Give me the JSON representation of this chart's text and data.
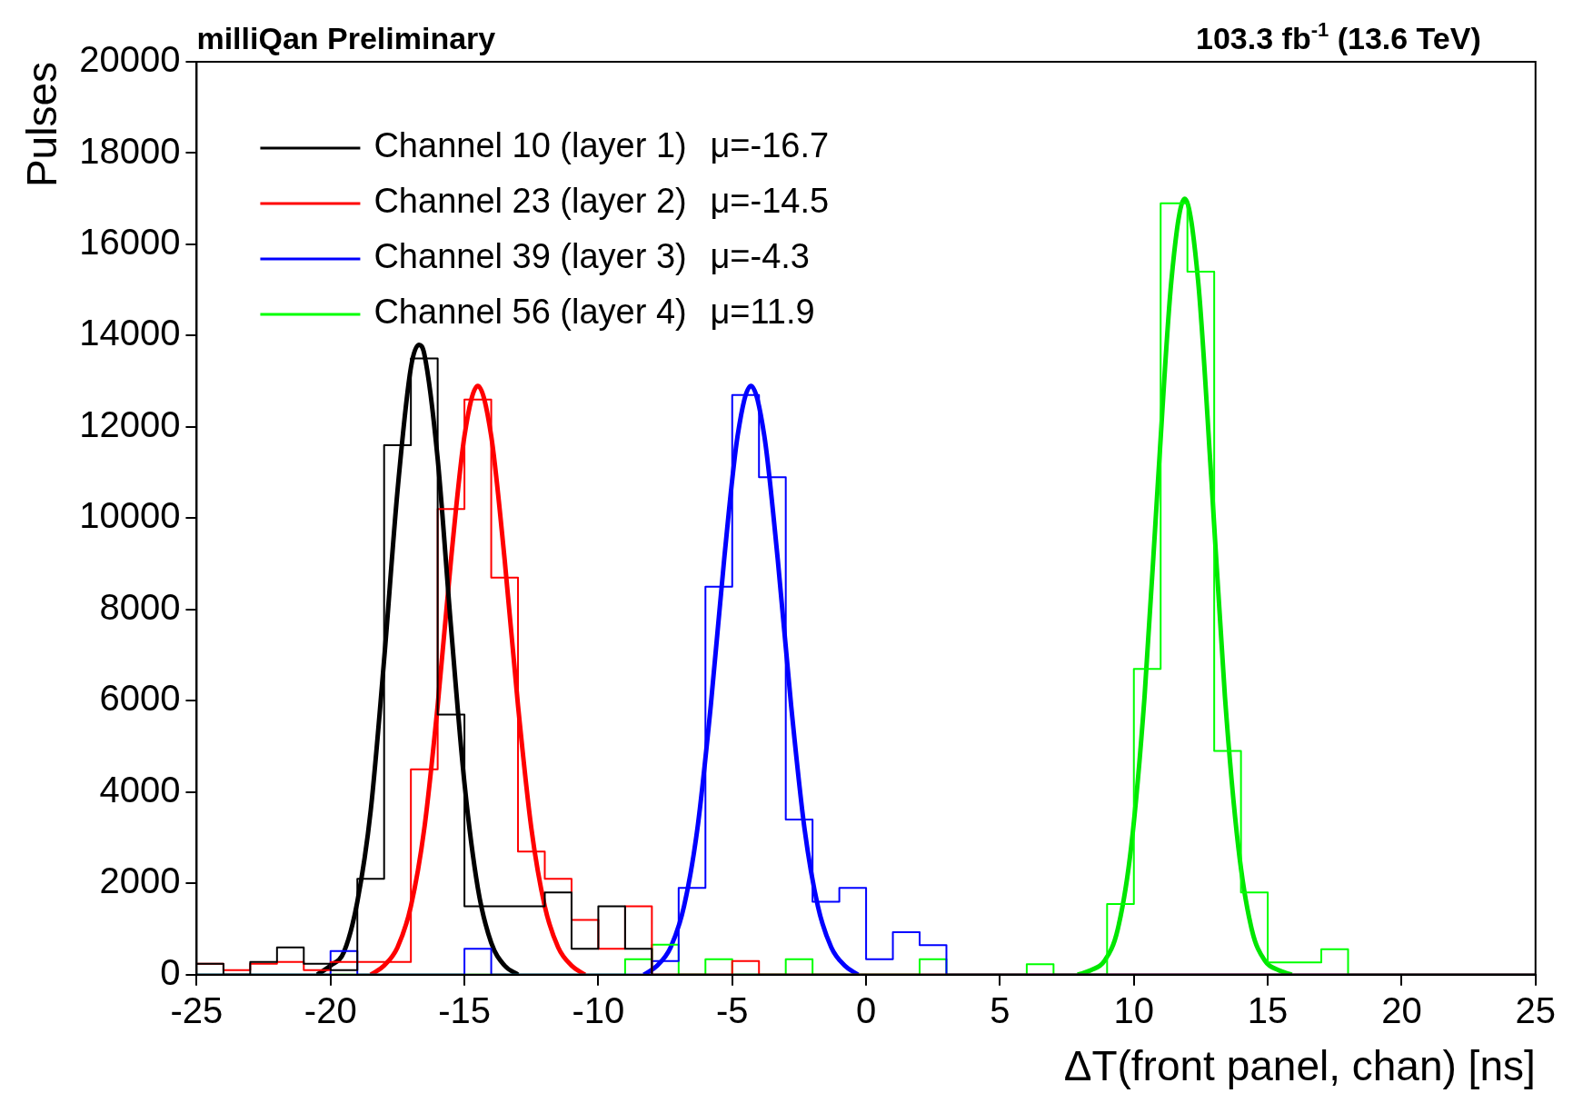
{
  "chart_data": {
    "type": "histogram",
    "title": "milliQan Preliminary",
    "subtitle": "103.3 fb$^{-1}$ (13.6 TeV)",
    "xlabel": "ΔT(front panel, chan) [ns]",
    "ylabel": "Pulses",
    "legend": "top left",
    "xlim": [
      -25,
      25
    ],
    "xticks": [
      -25,
      -20,
      -15,
      -10,
      -5,
      0,
      5,
      10,
      15,
      20,
      25
    ],
    "ylim": [
      0,
      20000
    ],
    "yticks": [
      0,
      2000,
      4000,
      6000,
      8000,
      10000,
      12000,
      14000,
      16000,
      18000,
      20000
    ],
    "bins": [
      -25,
      -24,
      -23,
      -22,
      -21,
      -20,
      -19,
      -18,
      -17,
      -16,
      -15,
      -14,
      -13,
      -12,
      -11,
      -10,
      -9,
      -8,
      -7,
      -6,
      -5,
      -4,
      -3,
      -2,
      -1,
      0,
      1,
      2,
      3,
      4,
      5,
      6,
      7,
      8,
      9,
      10,
      11,
      12,
      13,
      14,
      15,
      16,
      17,
      18,
      19,
      20,
      21,
      22,
      23,
      24,
      25
    ],
    "series": [
      {
        "name": "Channel 10 (layer 1)   μ=-16.7",
        "color": "#000000",
        "values": [
          240,
          0,
          280,
          600,
          240,
          100,
          2100,
          11600,
          13500,
          5700,
          1500,
          1500,
          1500,
          1800,
          570,
          1500,
          570,
          0,
          0,
          0,
          0,
          0,
          0,
          0,
          0,
          0,
          0,
          0,
          0,
          0,
          0,
          0,
          0,
          0,
          0,
          0,
          0,
          0,
          0,
          0,
          0,
          0,
          0,
          0,
          0,
          0,
          0,
          0,
          0,
          0
        ]
      },
      {
        "name": "Channel 23 (layer 2)   μ=-14.5",
        "color": "#ff0000",
        "values": [
          240,
          100,
          240,
          280,
          100,
          280,
          280,
          280,
          4500,
          10200,
          12600,
          8700,
          2700,
          2100,
          1200,
          570,
          1500,
          0,
          0,
          0,
          300,
          0,
          0,
          0,
          0,
          0,
          0,
          0,
          0,
          0,
          0,
          0,
          0,
          0,
          0,
          0,
          0,
          0,
          0,
          0,
          0,
          0,
          0,
          0,
          0,
          0,
          0,
          0,
          0,
          0
        ]
      },
      {
        "name": "Channel 39 (layer 3)   μ=-4.3",
        "color": "#0000ff",
        "values": [
          0,
          0,
          0,
          0,
          0,
          520,
          0,
          0,
          0,
          0,
          570,
          0,
          0,
          0,
          0,
          0,
          0,
          300,
          1900,
          8500,
          12700,
          10900,
          3400,
          1600,
          1900,
          340,
          930,
          650,
          0,
          0,
          0,
          0,
          0,
          0,
          0,
          0,
          0,
          0,
          0,
          0,
          0,
          0,
          0,
          0,
          0,
          0,
          0,
          0,
          0,
          0
        ]
      },
      {
        "name": "Channel 56 (layer 4)   μ=11.9",
        "color": "#00ff00",
        "values": [
          0,
          0,
          0,
          0,
          0,
          0,
          0,
          0,
          0,
          0,
          0,
          0,
          0,
          0,
          0,
          0,
          340,
          660,
          0,
          340,
          0,
          0,
          340,
          0,
          0,
          0,
          0,
          340,
          0,
          0,
          0,
          230,
          0,
          0,
          1550,
          6700,
          16900,
          15400,
          4900,
          1800,
          270,
          270,
          560,
          0,
          0,
          0,
          0,
          0,
          0,
          0
        ]
      },
      {
        "color": "#000000",
        "type": "line",
        "x": [
          -20.5,
          -20,
          -19.5,
          -19,
          -18.5,
          -18,
          -17.5,
          -17,
          -16.7,
          -16.5,
          -16,
          -15.5,
          -15,
          -14.5,
          -14,
          -13.5,
          -13
        ],
        "values": [
          0,
          200,
          500,
          1600,
          3600,
          6900,
          10600,
          13300,
          13800,
          13600,
          11300,
          7600,
          4200,
          1900,
          700,
          200,
          0
        ]
      },
      {
        "color": "#ff0000",
        "type": "line",
        "x": [
          -18.5,
          -18,
          -17.5,
          -17,
          -16.5,
          -16,
          -15.5,
          -15,
          -14.5,
          -14,
          -13.5,
          -13,
          -12.5,
          -12,
          -11.5,
          -11,
          -10.5
        ],
        "values": [
          0,
          200,
          600,
          1500,
          3200,
          5900,
          9100,
          11800,
          12900,
          11800,
          9100,
          5900,
          3200,
          1500,
          600,
          200,
          0
        ]
      },
      {
        "color": "#0000ff",
        "type": "line",
        "x": [
          -8.3,
          -7.8,
          -7.3,
          -6.8,
          -6.3,
          -5.8,
          -5.3,
          -4.8,
          -4.3,
          -3.8,
          -3.3,
          -2.8,
          -2.3,
          -1.8,
          -1.3,
          -0.8,
          -0.3
        ],
        "values": [
          0,
          200,
          600,
          1500,
          3200,
          5900,
          9100,
          11800,
          12900,
          11800,
          9100,
          5900,
          3200,
          1500,
          600,
          200,
          0
        ]
      },
      {
        "color": "#00e600",
        "type": "line",
        "x": [
          7.9,
          8.4,
          8.9,
          9.4,
          9.9,
          10.4,
          10.9,
          11.4,
          11.9,
          12.4,
          12.9,
          13.4,
          13.9,
          14.4,
          14.9,
          15.4,
          15.9
        ],
        "values": [
          0,
          100,
          300,
          1000,
          2800,
          6100,
          10800,
          15200,
          17000,
          15200,
          10800,
          6100,
          2800,
          1000,
          300,
          100,
          0
        ]
      }
    ]
  }
}
